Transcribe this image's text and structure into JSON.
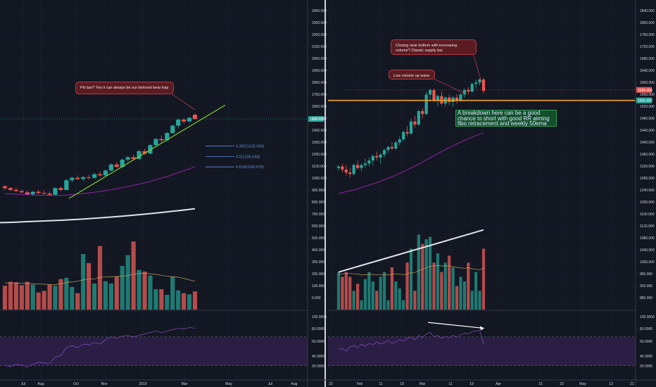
{
  "colors": {
    "background": "#131722",
    "up": "#26a69a",
    "down": "#ef5350",
    "vol_up": "#1f7a72",
    "vol_down": "#b54b4b",
    "ema": "#9c27b0",
    "volume_ma": "#c0a060",
    "trendline": "#7fd321",
    "price_line": "#26a69a",
    "orange_level": "#f5a623",
    "rsi_band": "#2a1e45"
  },
  "left_panel": {
    "y_ticks": [
      "2400.000",
      "2300.000",
      "2200.000",
      "2100.000",
      "2000.000",
      "1900.000",
      "1800.000",
      "1700.000",
      "1600.000",
      "1500.000",
      "1400.000",
      "1300.000",
      "1200.000",
      "1100.000",
      "1000.000",
      "900.000",
      "800.000",
      "700.000",
      "600.000",
      "500.000",
      "400.000",
      "300.000",
      "200.000",
      "100.000",
      "0.000"
    ],
    "x_ticks": [
      "Jul",
      "Aug",
      "Oct",
      "Nov",
      "2019",
      "Mar",
      "May",
      "Jul",
      "Aug"
    ],
    "price_tag": "1555.450",
    "callout": "Pin bar? Yes it can always be our beloved bear trap",
    "fibo": [
      "0.382(1332.068)",
      "0.5(1246.044)",
      "0.618(1160.079)"
    ],
    "rsi_ticks": [
      "100.0000",
      "80.0000",
      "60.0000",
      "40.0000",
      "20.0000"
    ]
  },
  "right_panel": {
    "y_ticks": [
      "1840.000",
      "1800.000",
      "1760.000",
      "1720.000",
      "1680.000",
      "1640.000",
      "1600.000",
      "1560.000",
      "1520.000",
      "1480.000",
      "1440.000",
      "1400.000",
      "1360.000",
      "1320.000",
      "1280.000",
      "1240.000",
      "1200.000",
      "1160.000",
      "1120.000",
      "1080.000",
      "1040.000",
      "1000.000",
      "960.000",
      "920.000",
      "880.000"
    ],
    "x_ticks": [
      "22",
      "Feb",
      "11",
      "19",
      "Mar",
      "11",
      "19",
      "Apr",
      "15",
      "23",
      "May",
      "13",
      "21"
    ],
    "price_tag_1": "1595.450",
    "price_tag_2": "1560.450",
    "callout_top": "Closing near bottom with increasing volume? Classic supply bar.",
    "callout_mid": "Low volume up wave",
    "green_note": "A breakdown here can be a good chance to short with good RR aiming fibo retracement and weekly 50ema",
    "rsi_ticks": [
      "100.0000",
      "80.0000",
      "60.0000",
      "40.0000",
      "20.0000"
    ]
  },
  "chart_data": [
    {
      "type": "candlestick",
      "title": "",
      "timeframe_note": "weekly",
      "x_ticks": [
        "Jul",
        "Aug",
        "Oct",
        "Nov",
        "2019",
        "Mar",
        "May",
        "Jul",
        "Aug"
      ],
      "ylim": [
        0,
        2450
      ],
      "ohlc": [
        [
          1000,
          1010,
          970,
          985
        ],
        [
          985,
          995,
          960,
          970
        ],
        [
          970,
          990,
          955,
          960
        ],
        [
          960,
          975,
          945,
          950
        ],
        [
          950,
          965,
          925,
          935
        ],
        [
          935,
          960,
          920,
          955
        ],
        [
          955,
          970,
          935,
          945
        ],
        [
          945,
          965,
          930,
          940
        ],
        [
          940,
          960,
          920,
          930
        ],
        [
          930,
          990,
          925,
          985
        ],
        [
          985,
          1000,
          960,
          970
        ],
        [
          970,
          1060,
          965,
          1050
        ],
        [
          1050,
          1080,
          1030,
          1070
        ],
        [
          1070,
          1090,
          1050,
          1060
        ],
        [
          1060,
          1085,
          1040,
          1075
        ],
        [
          1075,
          1095,
          1055,
          1070
        ],
        [
          1070,
          1110,
          1060,
          1100
        ],
        [
          1100,
          1125,
          1080,
          1090
        ],
        [
          1090,
          1140,
          1085,
          1130
        ],
        [
          1130,
          1190,
          1120,
          1180
        ],
        [
          1180,
          1200,
          1150,
          1160
        ],
        [
          1160,
          1230,
          1150,
          1220
        ],
        [
          1220,
          1250,
          1200,
          1240
        ],
        [
          1240,
          1260,
          1215,
          1225
        ],
        [
          1225,
          1300,
          1220,
          1290
        ],
        [
          1290,
          1310,
          1260,
          1270
        ],
        [
          1270,
          1350,
          1265,
          1340
        ],
        [
          1340,
          1400,
          1320,
          1390
        ],
        [
          1390,
          1420,
          1360,
          1380
        ],
        [
          1380,
          1450,
          1370,
          1440
        ],
        [
          1440,
          1510,
          1430,
          1500
        ],
        [
          1500,
          1560,
          1480,
          1550
        ],
        [
          1550,
          1565,
          1520,
          1535
        ],
        [
          1535,
          1575,
          1525,
          1565
        ],
        [
          1590,
          1600,
          1550,
          1555
        ]
      ],
      "volume": [
        210,
        245,
        240,
        215,
        245,
        220,
        150,
        165,
        220,
        210,
        270,
        280,
        200,
        145,
        490,
        410,
        230,
        560,
        250,
        230,
        290,
        385,
        480,
        600,
        350,
        335,
        300,
        180,
        180,
        130,
        290,
        170,
        145,
        135,
        160
      ],
      "volume_ma": [
        235,
        236,
        234,
        231,
        230,
        228,
        226,
        224,
        222,
        221,
        228,
        238,
        245,
        250,
        262,
        268,
        270,
        285,
        288,
        290,
        292,
        295,
        300,
        310,
        318,
        320,
        316,
        310,
        302,
        295,
        290,
        285,
        276,
        262,
        250
      ],
      "ema50": [
        940,
        938,
        935,
        933,
        931,
        929,
        927,
        925,
        924,
        924,
        925,
        928,
        932,
        936,
        940,
        945,
        951,
        957,
        964,
        972,
        980,
        989,
        998,
        1008,
        1018,
        1029,
        1041,
        1054,
        1067,
        1081,
        1096,
        1112,
        1128,
        1144,
        1160
      ],
      "weekly_long_ma": [
        700,
        702,
        705,
        708,
        711,
        714,
        717,
        720,
        724,
        728,
        733,
        738,
        743,
        749,
        755,
        761,
        768,
        775,
        782,
        790,
        798,
        806,
        815
      ],
      "fibonacci": [
        {
          "level": "0.382",
          "price": 1332.068
        },
        {
          "level": "0.5",
          "price": 1246.044
        },
        {
          "level": "0.618",
          "price": 1160.079
        }
      ],
      "last_price": 1555.45,
      "rsi": [
        30,
        29,
        32,
        31,
        28,
        32,
        35,
        34,
        33,
        42,
        44,
        55,
        58,
        55,
        60,
        59,
        62,
        60,
        66,
        70,
        68,
        71,
        72,
        70,
        72,
        74,
        76,
        78,
        76,
        78,
        80,
        82,
        81,
        83,
        82
      ],
      "rsi_levels": [
        70,
        30
      ]
    },
    {
      "type": "candlestick",
      "title": "",
      "timeframe_note": "daily",
      "x_ticks": [
        "22",
        "Feb",
        "11",
        "19",
        "Mar",
        "11",
        "19",
        "Apr",
        "15",
        "23",
        "May",
        "13",
        "21"
      ],
      "ylim": [
        870,
        1860
      ],
      "ohlc": [
        [
          1335,
          1345,
          1325,
          1340
        ],
        [
          1340,
          1350,
          1320,
          1330
        ],
        [
          1330,
          1345,
          1310,
          1320
        ],
        [
          1320,
          1335,
          1305,
          1315
        ],
        [
          1315,
          1350,
          1310,
          1345
        ],
        [
          1345,
          1360,
          1330,
          1335
        ],
        [
          1335,
          1350,
          1325,
          1345
        ],
        [
          1345,
          1365,
          1335,
          1350
        ],
        [
          1350,
          1370,
          1340,
          1360
        ],
        [
          1360,
          1380,
          1345,
          1375
        ],
        [
          1375,
          1390,
          1360,
          1370
        ],
        [
          1370,
          1385,
          1350,
          1380
        ],
        [
          1380,
          1400,
          1370,
          1395
        ],
        [
          1395,
          1410,
          1385,
          1405
        ],
        [
          1405,
          1420,
          1395,
          1400
        ],
        [
          1400,
          1425,
          1395,
          1420
        ],
        [
          1420,
          1440,
          1410,
          1430
        ],
        [
          1430,
          1460,
          1425,
          1455
        ],
        [
          1455,
          1475,
          1440,
          1450
        ],
        [
          1450,
          1500,
          1445,
          1490
        ],
        [
          1490,
          1510,
          1470,
          1480
        ],
        [
          1480,
          1530,
          1475,
          1525
        ],
        [
          1525,
          1535,
          1500,
          1515
        ],
        [
          1515,
          1590,
          1510,
          1580
        ],
        [
          1580,
          1600,
          1560,
          1595
        ],
        [
          1595,
          1600,
          1555,
          1560
        ],
        [
          1560,
          1580,
          1540,
          1575
        ],
        [
          1575,
          1590,
          1545,
          1550
        ],
        [
          1550,
          1575,
          1540,
          1570
        ],
        [
          1570,
          1580,
          1545,
          1555
        ],
        [
          1555,
          1575,
          1540,
          1570
        ],
        [
          1570,
          1580,
          1550,
          1560
        ],
        [
          1560,
          1585,
          1555,
          1580
        ],
        [
          1580,
          1600,
          1570,
          1595
        ],
        [
          1595,
          1605,
          1580,
          1590
        ],
        [
          1590,
          1620,
          1585,
          1615
        ],
        [
          1615,
          1630,
          1600,
          1620
        ],
        [
          1620,
          1635,
          1610,
          1630
        ],
        [
          1630,
          1635,
          1585,
          1592
        ]
      ],
      "volume": [
        1040,
        1030,
        1040,
        1030,
        1000,
        1015,
        980,
        1025,
        1040,
        1020,
        1000,
        1030,
        1040,
        980,
        1050,
        1020,
        1005,
        980,
        1060,
        1090,
        1000,
        1120,
        1100,
        1110,
        1115,
        1060,
        1080,
        1040,
        1060,
        1075,
        1050,
        1010,
        1030,
        1020,
        1060,
        1000,
        1040,
        1000,
        1090
      ],
      "volume_ma": [
        1035,
        1036,
        1037,
        1037,
        1036,
        1036,
        1034,
        1034,
        1035,
        1035,
        1034,
        1034,
        1035,
        1034,
        1035,
        1036,
        1036,
        1034,
        1036,
        1039,
        1039,
        1043,
        1046,
        1049,
        1052,
        1053,
        1054,
        1053,
        1053,
        1053,
        1052,
        1050,
        1049,
        1048,
        1049,
        1047,
        1046,
        1045,
        1048
      ],
      "volume_trend": [
        [
          0,
          1040
        ],
        [
          38,
          1130
        ]
      ],
      "ema50": [
        1250,
        1253,
        1256,
        1259,
        1262,
        1266,
        1270,
        1274,
        1278,
        1282,
        1286,
        1291,
        1296,
        1301,
        1306,
        1311,
        1317,
        1323,
        1329,
        1335,
        1341,
        1348,
        1355,
        1362,
        1369,
        1376,
        1383,
        1390,
        1397,
        1403,
        1409,
        1415,
        1421,
        1427,
        1433,
        1438,
        1443,
        1448,
        1452
      ],
      "levels": {
        "price_line": 1595.45,
        "orange_level": 1560.45
      },
      "rsi": [
        52,
        54,
        50,
        56,
        58,
        55,
        60,
        57,
        61,
        59,
        63,
        60,
        62,
        65,
        61,
        63,
        66,
        64,
        68,
        70,
        66,
        72,
        69,
        74,
        76,
        70,
        72,
        68,
        71,
        69,
        72,
        70,
        73,
        75,
        74,
        77,
        78,
        79,
        60
      ],
      "rsi_levels": [
        70,
        30
      ],
      "divergence_arrow": [
        [
          29,
          90
        ],
        [
          38,
          82
        ]
      ]
    }
  ]
}
